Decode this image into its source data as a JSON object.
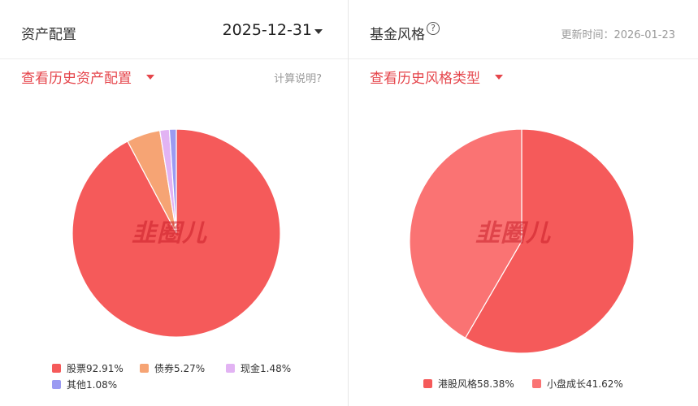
{
  "asset": {
    "title": "资产配置",
    "date": "2025-12-31",
    "history_link": "查看历史资产配置",
    "calc_note": "计算说明?",
    "watermark": "韭圈儿"
  },
  "style": {
    "title": "基金风格",
    "help_icon": "?",
    "update_time": "更新时间：2026-01-23",
    "history_link": "查看历史风格类型",
    "watermark": "韭圈儿"
  },
  "colors": {
    "red": "#f55a5a",
    "orange": "#f6a474",
    "pink": "#e2b3f3",
    "blue": "#9b9bf2",
    "light_red": "#fa7373",
    "accent": "#e5454b"
  },
  "chart_data": [
    {
      "type": "pie",
      "slices": [
        {
          "label": "股票",
          "value": 92.91,
          "display": "股票92.91%"
        },
        {
          "label": "债券",
          "value": 5.27,
          "display": "债券5.27%"
        },
        {
          "label": "现金",
          "value": 1.48,
          "display": "现金1.48%"
        },
        {
          "label": "其他",
          "value": 1.08,
          "display": "其他1.08%"
        }
      ]
    },
    {
      "type": "pie",
      "slices": [
        {
          "label": "港股风格",
          "value": 58.38,
          "display": "港股风格58.38%"
        },
        {
          "label": "小盘成长",
          "value": 41.62,
          "display": "小盘成长41.62%"
        }
      ]
    }
  ]
}
